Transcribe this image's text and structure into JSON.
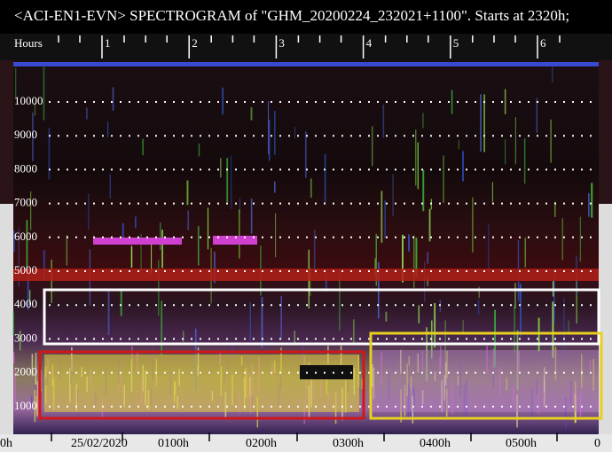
{
  "header": {
    "title": "<ACI-EN1-EVN> SPECTROGRAM of \"GHM_20200224_232021+1100\". Starts at 2320h;"
  },
  "top_axis": {
    "label": "Hours",
    "ticks": [
      "1",
      "2",
      "3",
      "4",
      "5",
      "6"
    ]
  },
  "frequency_labels": [
    "10000",
    "9000",
    "8000",
    "7000",
    "6000",
    "5000",
    "4000",
    "3000",
    "2000",
    "1000"
  ],
  "bottom_axis": {
    "labels": [
      "0h",
      "25/02/2020",
      "0100h",
      "0200h",
      "0300h",
      "0400h",
      "0500h",
      "0"
    ]
  }
}
